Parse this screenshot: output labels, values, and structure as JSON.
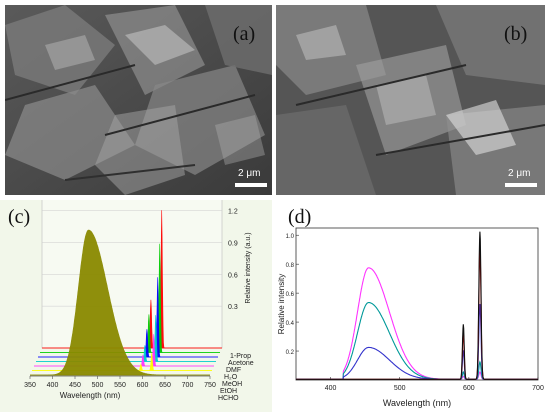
{
  "panels": {
    "a": {
      "label": "(a)",
      "scale": "2 μm"
    },
    "b": {
      "label": "(b)",
      "scale": "2 μm"
    },
    "c": {
      "label": "(c)"
    },
    "d": {
      "label": "(d)"
    }
  },
  "chart_data": [
    {
      "type": "area",
      "xlabel": "Wavelength  (nm)",
      "zlabel": "Relative intensity (a.u.)",
      "x_ticks": [
        350,
        400,
        450,
        500,
        550,
        600,
        650,
        700,
        750
      ],
      "z_ticks": [
        0.3,
        0.6,
        0.9,
        1.2
      ],
      "series_labels": [
        "1-Prop",
        "Acetone",
        "DMF",
        "H₂O",
        "MeOH",
        "EtOH",
        "HCHO"
      ],
      "series": [
        {
          "name": "HCHO",
          "color": "#8a8a00",
          "peaks": [
            {
              "x": 480,
              "y": 1.0,
              "w": 28
            }
          ]
        },
        {
          "name": "EtOH",
          "color": "#ffff00",
          "peaks": [
            {
              "x": 616,
              "y": 0.12
            }
          ]
        },
        {
          "name": "MeOH",
          "color": "#ff33ff",
          "peaks": [
            {
              "x": 616,
              "y": 0.22
            }
          ]
        },
        {
          "name": "H₂O",
          "color": "#00cccc",
          "peaks": [
            {
              "x": 616,
              "y": 0.32
            }
          ]
        },
        {
          "name": "DMF",
          "color": "#0000ff",
          "peaks": [
            {
              "x": 616,
              "y": 0.55
            }
          ]
        },
        {
          "name": "Acetone",
          "color": "#00cc00",
          "peaks": [
            {
              "x": 616,
              "y": 0.75
            }
          ]
        },
        {
          "name": "1-Prop",
          "color": "#ff0000",
          "peaks": [
            {
              "x": 616,
              "y": 0.95
            }
          ]
        }
      ]
    },
    {
      "type": "line",
      "xlabel": "Wavelength  (nm)",
      "ylabel": "Relative intensity",
      "xlim": [
        350,
        700
      ],
      "ylim": [
        0,
        1.05
      ],
      "x_ticks": [
        400,
        500,
        600,
        700
      ],
      "y_ticks": [
        0.2,
        0.4,
        0.6,
        0.8,
        1.0
      ],
      "series": [
        {
          "color": "#ff33ff",
          "broad": 0.77,
          "p592": 0.02,
          "p616": 0.05
        },
        {
          "color": "#009999",
          "broad": 0.53,
          "p592": 0.05,
          "p616": 0.12
        },
        {
          "color": "#3333cc",
          "broad": 0.22,
          "p592": 0.2,
          "p616": 0.52
        },
        {
          "color": "#cc0000",
          "broad": 0.0,
          "p592": 0.32,
          "p616": 0.89
        },
        {
          "color": "#111111",
          "broad": 0.0,
          "p592": 0.38,
          "p616": 1.02
        }
      ]
    }
  ]
}
